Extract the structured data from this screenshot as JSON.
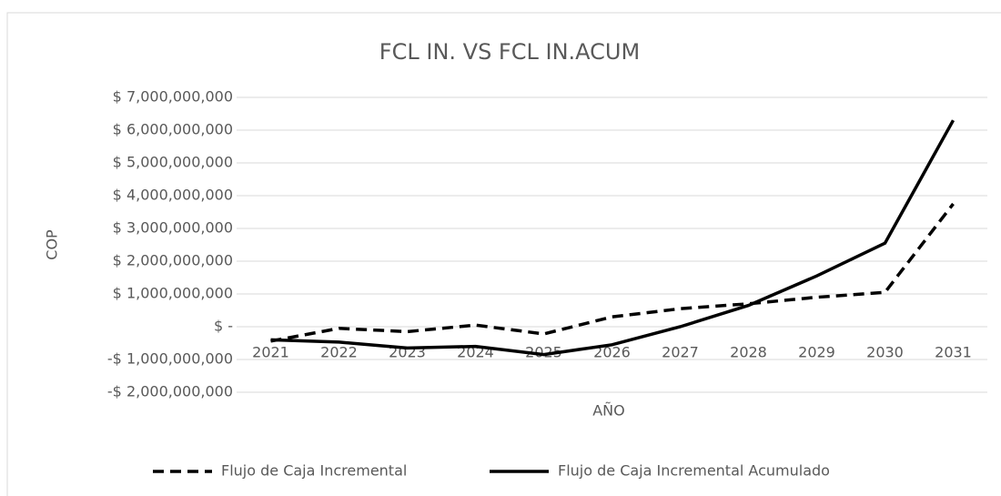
{
  "chart_data": {
    "type": "line",
    "title": "FCL IN. VS FCL IN.ACUM",
    "x_label": "AÑO",
    "y_label": "COP",
    "categories": [
      "2021",
      "2022",
      "2023",
      "2024",
      "2025",
      "2026",
      "2027",
      "2028",
      "2029",
      "2030",
      "2031"
    ],
    "series": [
      {
        "name": "Flujo de Caja Incremental",
        "color": "#000000",
        "dash": true,
        "values": [
          -440000000,
          -50000000,
          -150000000,
          50000000,
          -220000000,
          300000000,
          550000000,
          700000000,
          900000000,
          1050000000,
          3750000000
        ]
      },
      {
        "name": "Flujo de Caja Incremental Acumulado",
        "color": "#000000",
        "dash": false,
        "values": [
          -400000000,
          -470000000,
          -650000000,
          -600000000,
          -850000000,
          -550000000,
          0,
          650000000,
          1550000000,
          2550000000,
          6300000000
        ]
      }
    ],
    "ylim": [
      -2000000000,
      7000000000
    ],
    "yticks": [
      {
        "value": -2000000000,
        "label": "-$ 2,000,000,000"
      },
      {
        "value": -1000000000,
        "label": "-$ 1,000,000,000"
      },
      {
        "value": 0,
        "label": "$ -"
      },
      {
        "value": 1000000000,
        "label": "$ 1,000,000,000"
      },
      {
        "value": 2000000000,
        "label": "$ 2,000,000,000"
      },
      {
        "value": 3000000000,
        "label": "$ 3,000,000,000"
      },
      {
        "value": 4000000000,
        "label": "$ 4,000,000,000"
      },
      {
        "value": 5000000000,
        "label": "$ 5,000,000,000"
      },
      {
        "value": 6000000000,
        "label": "$ 6,000,000,000"
      },
      {
        "value": 7000000000,
        "label": "$ 7,000,000,000"
      }
    ],
    "grid": true,
    "legend": "bottom"
  }
}
